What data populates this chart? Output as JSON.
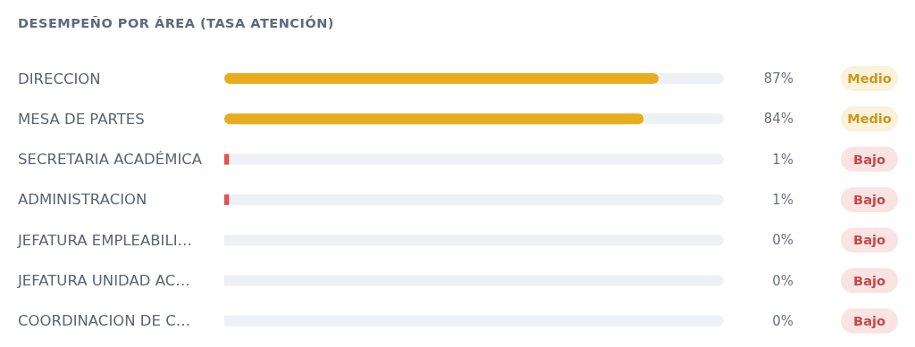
{
  "chart_data": {
    "type": "bar",
    "orientation": "horizontal",
    "stacked": true,
    "title": "DESEMPEÑO POR ÁREA (TASA ATENCIÓN)",
    "categories": [
      "DIRECCION",
      "MESA DE PARTES",
      "SECRETARIA ACADÉMICA",
      "ADMINISTRACION",
      "JEFATURA EMPLEABILI…",
      "JEFATURA UNIDAD AC…",
      "COORDINACION DE C…"
    ],
    "series": [
      {
        "values": [
          87,
          84,
          1,
          1,
          0,
          0,
          0
        ],
        "colors": [
          "#e8ad1f",
          "#e8ad1f",
          "#e05252",
          "#e05252",
          "#e05252",
          "#e05252",
          "#e05252"
        ],
        "value_labels": [
          "87%",
          "84%",
          "1%",
          "1%",
          "0%",
          "0%",
          "0%"
        ]
      },
      {
        "values": [
          13,
          16,
          99,
          99,
          100,
          100,
          100
        ],
        "color": "#edf0f5"
      }
    ],
    "xlim": [
      0,
      100
    ],
    "tick_labels": "y",
    "annotations": [
      "Medio",
      "Medio",
      "Bajo",
      "Bajo",
      "Bajo",
      "Bajo",
      "Bajo"
    ]
  }
}
